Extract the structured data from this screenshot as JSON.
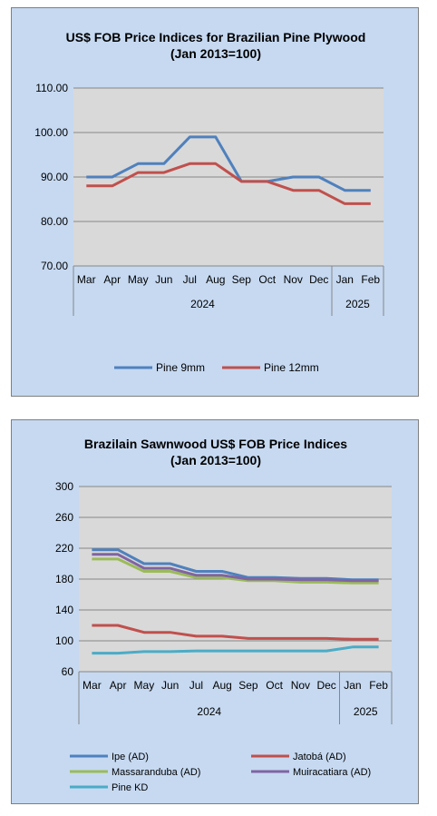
{
  "chart_data": [
    {
      "type": "line",
      "title_line1": "US$ FOB Price Indices for Brazilian  Pine Plywood",
      "title_line2": "(Jan 2013=100)",
      "categories": [
        "Mar",
        "Apr",
        "May",
        "Jun",
        "Jul",
        "Aug",
        "Sep",
        "Oct",
        "Nov",
        "Dec",
        "Jan",
        "Feb"
      ],
      "year_groups": [
        {
          "label": "2024",
          "start": 0,
          "end": 9
        },
        {
          "label": "2025",
          "start": 10,
          "end": 11
        }
      ],
      "ylim": [
        70,
        110
      ],
      "yticks": [
        70,
        80,
        90,
        100,
        110
      ],
      "ytick_labels": [
        "70.00",
        "80.00",
        "90.00",
        "100.00",
        "110.00"
      ],
      "grid": true,
      "legend_position": "bottom",
      "series": [
        {
          "name": "Pine 9mm",
          "color": "#4f81bd",
          "values": [
            90,
            90,
            93,
            93,
            99,
            99,
            89,
            89,
            90,
            90,
            87,
            87
          ]
        },
        {
          "name": "Pine 12mm",
          "color": "#c0504d",
          "values": [
            88,
            88,
            91,
            91,
            93,
            93,
            89,
            89,
            87,
            87,
            84,
            84
          ]
        }
      ]
    },
    {
      "type": "line",
      "title_line1": "Brazilain Sawnwood US$ FOB Price Indices",
      "title_line2": "(Jan 2013=100)",
      "categories": [
        "Mar",
        "Apr",
        "May",
        "Jun",
        "Jul",
        "Aug",
        "Sep",
        "Oct",
        "Nov",
        "Dec",
        "Jan",
        "Feb"
      ],
      "year_groups": [
        {
          "label": "2024",
          "start": 0,
          "end": 9
        },
        {
          "label": "2025",
          "start": 10,
          "end": 11
        }
      ],
      "ylim": [
        60,
        300
      ],
      "yticks": [
        60,
        100,
        140,
        180,
        220,
        260,
        300
      ],
      "ytick_labels": [
        "60",
        "100",
        "140",
        "180",
        "220",
        "260",
        "300"
      ],
      "grid": true,
      "legend_position": "bottom",
      "series": [
        {
          "name": "Ipe (AD)",
          "color": "#4f81bd",
          "values": [
            218,
            218,
            200,
            200,
            190,
            190,
            182,
            182,
            181,
            181,
            179,
            179
          ]
        },
        {
          "name": "Jatobá (AD)",
          "color": "#c0504d",
          "values": [
            120,
            120,
            111,
            111,
            106,
            106,
            103,
            103,
            103,
            103,
            102,
            102
          ]
        },
        {
          "name": "Massaranduba (AD)",
          "color": "#9bbb59",
          "values": [
            206,
            206,
            190,
            190,
            182,
            182,
            178,
            178,
            176,
            176,
            175,
            175
          ]
        },
        {
          "name": "Muiracatiara (AD)",
          "color": "#8064a2",
          "values": [
            212,
            212,
            194,
            194,
            185,
            185,
            180,
            180,
            179,
            179,
            178,
            178
          ]
        },
        {
          "name": "Pine KD",
          "color": "#4bacc6",
          "values": [
            84,
            84,
            86,
            86,
            87,
            87,
            87,
            87,
            87,
            87,
            92,
            92
          ]
        }
      ]
    }
  ]
}
